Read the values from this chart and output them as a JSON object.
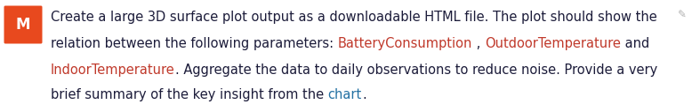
{
  "avatar_letter": "M",
  "avatar_bg_color": "#E8491E",
  "avatar_text_color": "#FFFFFF",
  "background_color": "#FFFFFF",
  "dark": "#1c1c3a",
  "red": "#c0392b",
  "blue": "#2471a3",
  "gray": "#b0b0b0",
  "font_size": 10.5,
  "line1": "Create a large 3D surface plot output as a downloadable HTML file. The plot should show the",
  "line2_parts": [
    {
      "text": "relation between the following parameters: ",
      "color": "#1c1c3a"
    },
    {
      "text": "BatteryConsumption",
      "color": "#c0392b"
    },
    {
      "text": " , ",
      "color": "#1c1c3a"
    },
    {
      "text": "OutdoorTemperature",
      "color": "#c0392b"
    },
    {
      "text": " and",
      "color": "#1c1c3a"
    }
  ],
  "line3_parts": [
    {
      "text": "IndoorTemperature",
      "color": "#c0392b"
    },
    {
      "text": ". Aggregate the data to daily observations to reduce noise. Provide a very",
      "color": "#1c1c3a"
    }
  ],
  "line4_parts": [
    {
      "text": "brief summary of the key insight from the ",
      "color": "#1c1c3a"
    },
    {
      "text": "chart",
      "color": "#2471a3"
    },
    {
      "text": ".",
      "color": "#1c1c3a"
    }
  ]
}
